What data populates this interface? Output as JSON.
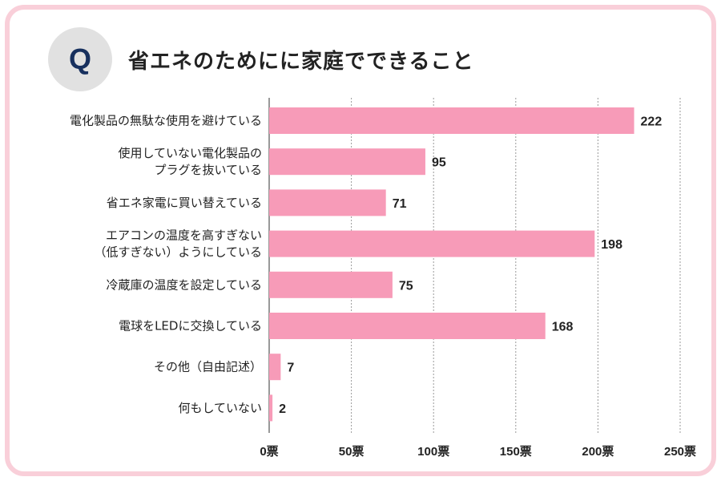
{
  "question_badge": "Q",
  "title": "省エネのためにに家庭でできること",
  "chart_data": {
    "type": "bar",
    "orientation": "horizontal",
    "categories": [
      [
        "電化製品の無駄な使用を避けている"
      ],
      [
        "使用していない電化製品の",
        "プラグを抜いている"
      ],
      [
        "省エネ家電に買い替えている"
      ],
      [
        "エアコンの温度を高すぎない",
        "（低すぎない）ようにしている"
      ],
      [
        "冷蔵庫の温度を設定している"
      ],
      [
        "電球をLEDに交換している"
      ],
      [
        "その他（自由記述）"
      ],
      [
        "何もしていない"
      ]
    ],
    "values": [
      222,
      95,
      71,
      198,
      75,
      168,
      7,
      2
    ],
    "xlim": [
      0,
      250
    ],
    "x_ticks": [
      0,
      50,
      100,
      150,
      200,
      250
    ],
    "x_tick_labels": [
      "0票",
      "50票",
      "100票",
      "150票",
      "200票",
      "250票"
    ],
    "grid": true,
    "bar_color": "#f79bb8",
    "grid_color": "#9a9a9a"
  },
  "colors": {
    "frame": "#f9cfd9",
    "badge_bg": "#e1e1e1",
    "badge_text": "#17305e"
  }
}
